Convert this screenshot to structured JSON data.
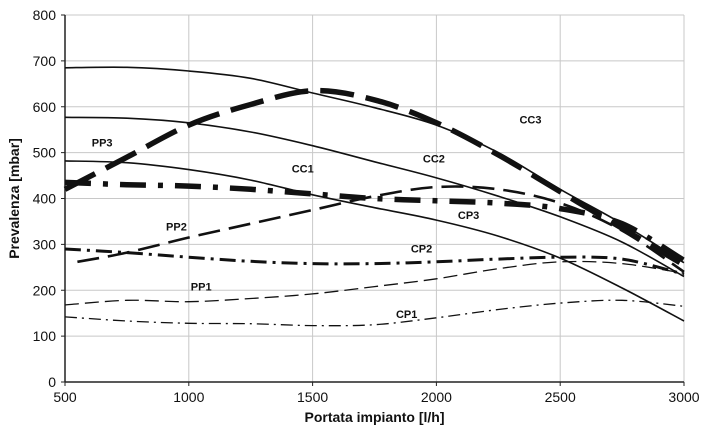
{
  "chart_data": {
    "type": "line",
    "title": "",
    "xlabel": "Portata impianto [l/h]",
    "ylabel": "Prevalenza [mbar]",
    "xlim": [
      500,
      3000
    ],
    "ylim": [
      0,
      800
    ],
    "xticks": [
      500,
      1000,
      1500,
      2000,
      2500,
      3000
    ],
    "yticks": [
      0,
      100,
      200,
      300,
      400,
      500,
      600,
      700,
      800
    ],
    "grid": true,
    "legend": "none",
    "series": [
      {
        "name": "PP1",
        "style": "dashed-thin",
        "x": [
          500,
          750,
          1000,
          1250,
          1500,
          1750,
          2000,
          2250,
          2500,
          2750,
          3000
        ],
        "y": [
          168,
          178,
          175,
          182,
          192,
          208,
          225,
          247,
          262,
          258,
          237
        ]
      },
      {
        "name": "PP2",
        "style": "dashed-medium",
        "x": [
          550,
          750,
          1000,
          1250,
          1500,
          1750,
          2000,
          2250,
          2500,
          2750,
          3000
        ],
        "y": [
          262,
          282,
          315,
          345,
          375,
          405,
          425,
          420,
          390,
          330,
          240
        ]
      },
      {
        "name": "PP3",
        "style": "dashed-heavy",
        "x": [
          500,
          750,
          1000,
          1250,
          1500,
          1750,
          2000,
          2250,
          2500,
          2750,
          3000
        ],
        "y": [
          420,
          490,
          560,
          605,
          635,
          615,
          565,
          495,
          415,
          335,
          255
        ]
      },
      {
        "name": "CP1",
        "style": "dashdot-thin",
        "x": [
          500,
          750,
          1000,
          1250,
          1500,
          1750,
          2000,
          2250,
          2500,
          2750,
          3000
        ],
        "y": [
          142,
          133,
          128,
          127,
          123,
          125,
          140,
          158,
          172,
          178,
          165
        ]
      },
      {
        "name": "CP2",
        "style": "dashdot-medium",
        "x": [
          500,
          750,
          1000,
          1250,
          1500,
          1750,
          2000,
          2250,
          2500,
          2750,
          3000
        ],
        "y": [
          290,
          282,
          272,
          263,
          258,
          258,
          262,
          268,
          272,
          268,
          235
        ]
      },
      {
        "name": "CP3",
        "style": "dashdot-heavy",
        "x": [
          500,
          750,
          1000,
          1250,
          1500,
          1750,
          2000,
          2250,
          2500,
          2750,
          3000
        ],
        "y": [
          435,
          430,
          427,
          420,
          410,
          400,
          395,
          390,
          378,
          345,
          265
        ]
      },
      {
        "name": "CC1",
        "style": "solid",
        "x": [
          500,
          750,
          1000,
          1250,
          1500,
          1750,
          2000,
          2250,
          2500,
          2750,
          3000
        ],
        "y": [
          482,
          478,
          463,
          440,
          408,
          380,
          353,
          318,
          270,
          205,
          133
        ]
      },
      {
        "name": "CC2",
        "style": "solid",
        "x": [
          500,
          750,
          1000,
          1250,
          1500,
          1750,
          2000,
          2250,
          2500,
          2750,
          3000
        ],
        "y": [
          577,
          575,
          565,
          545,
          515,
          480,
          445,
          405,
          360,
          305,
          230
        ]
      },
      {
        "name": "CC3",
        "style": "solid",
        "x": [
          500,
          750,
          1000,
          1250,
          1500,
          1750,
          2000,
          2250,
          2500,
          2750,
          3000
        ],
        "y": [
          685,
          686,
          678,
          662,
          630,
          598,
          560,
          500,
          420,
          345,
          260
        ]
      }
    ],
    "annotations": [
      {
        "text": "PP1",
        "x": 1050,
        "y": 200
      },
      {
        "text": "PP2",
        "x": 950,
        "y": 330
      },
      {
        "text": "PP3",
        "x": 650,
        "y": 513
      },
      {
        "text": "CP1",
        "x": 1880,
        "y": 140
      },
      {
        "text": "CP2",
        "x": 1940,
        "y": 282
      },
      {
        "text": "CP3",
        "x": 2130,
        "y": 355
      },
      {
        "text": "CC1",
        "x": 1460,
        "y": 457
      },
      {
        "text": "CC2",
        "x": 1990,
        "y": 478
      },
      {
        "text": "CC3",
        "x": 2380,
        "y": 563
      }
    ]
  }
}
